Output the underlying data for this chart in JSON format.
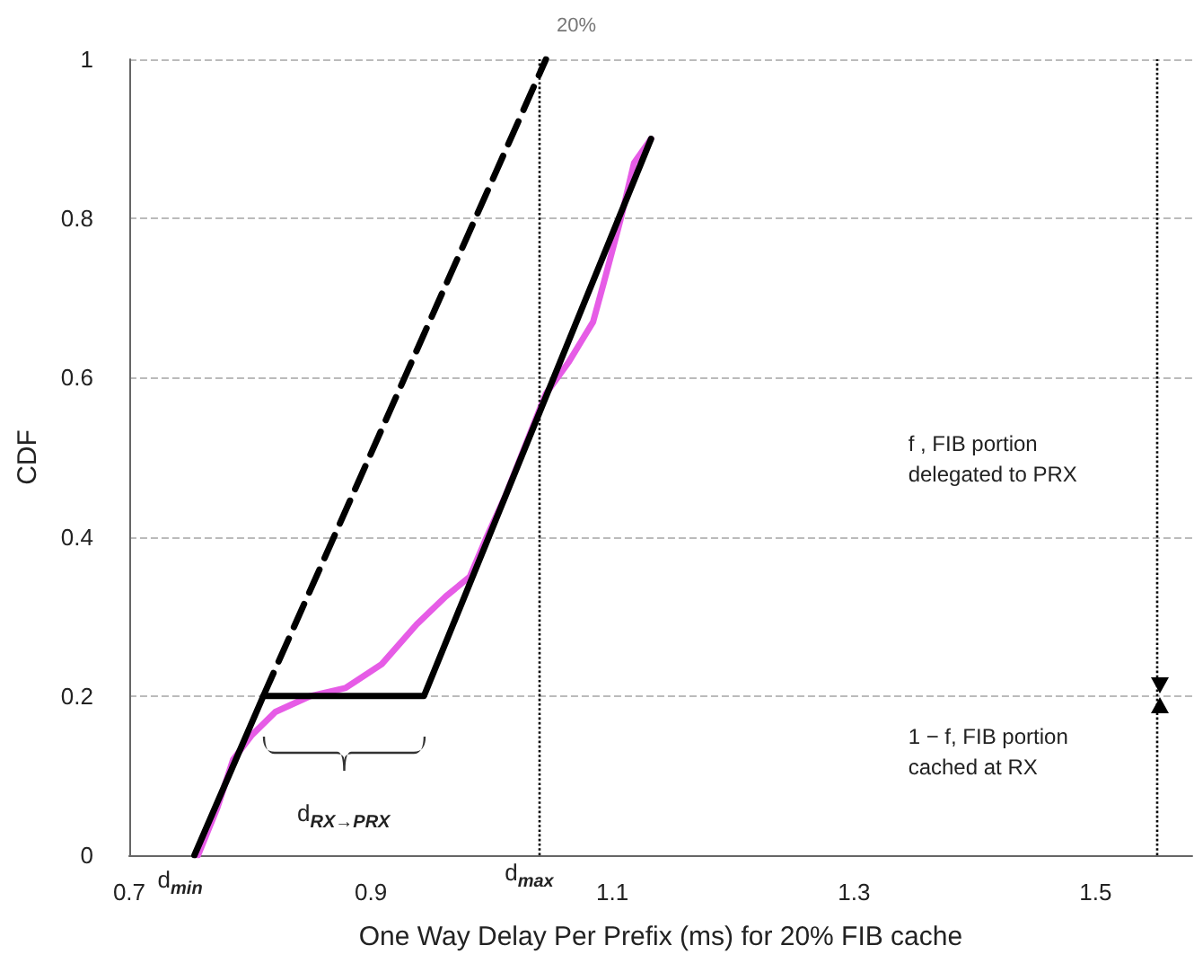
{
  "chart_data": {
    "type": "line",
    "title": "20%",
    "xlabel": "One Way Delay Per Prefix (ms) for 20% FIB cache",
    "ylabel": "CDF",
    "xlim": [
      0.7,
      1.58
    ],
    "xticks": [
      0.7,
      0.9,
      1.1,
      1.3,
      1.5
    ],
    "ylim": [
      0,
      1
    ],
    "yticks": [
      0,
      0.2,
      0.4,
      0.6,
      0.8,
      1
    ],
    "grid": "y",
    "marker": "none",
    "series": [
      {
        "color": "#e65ce6",
        "x": [
          0.757,
          0.773,
          0.786,
          0.801,
          0.821,
          0.85,
          0.879,
          0.909,
          0.938,
          0.962,
          0.982,
          0.996,
          1.011,
          1.045,
          1.064,
          1.074,
          1.084,
          1.093,
          1.107,
          1.118,
          1.132
        ],
        "values": [
          0,
          0.06,
          0.12,
          0.15,
          0.18,
          0.2,
          0.21,
          0.24,
          0.29,
          0.325,
          0.35,
          0.4,
          0.45,
          0.58,
          0.62,
          0.645,
          0.67,
          0.72,
          0.8,
          0.87,
          0.9
        ]
      },
      {
        "color": "#000000",
        "x": [
          0.754,
          0.811,
          0.944,
          1.132
        ],
        "values": [
          0,
          0.2,
          0.2,
          0.9
        ]
      },
      {
        "color": "#000000",
        "line_style": "dashed",
        "x": [
          0.811,
          1.045
        ],
        "values": [
          0.2,
          1
        ]
      }
    ],
    "ref_lines": [
      {
        "axis": "x",
        "value": 1.04,
        "color": "#000000",
        "line_style": "dotted"
      },
      {
        "axis": "x",
        "value": 1.553,
        "color": "#000000",
        "line_style": "dotted"
      }
    ],
    "annotations": [
      {
        "text": "d$_{min}$",
        "x": 0.754,
        "y": 0
      },
      {
        "text": "d$_{max}$",
        "x": 1.04,
        "y": 0
      },
      "d$_{RX→PRX}$",
      "f , FIB portion delegated to PRX",
      "1 − f, FIB portion cached at RX"
    ]
  }
}
